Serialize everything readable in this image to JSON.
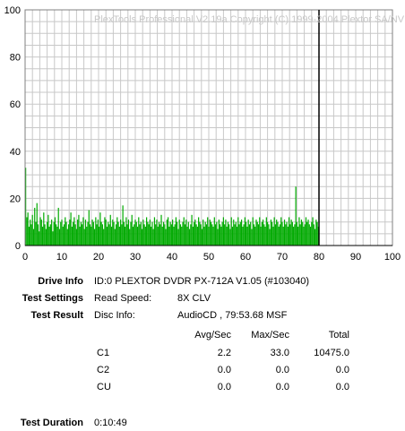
{
  "chart_data": {
    "type": "bar",
    "title": "PlexTools Professional V2.19a Copyright (C) 1999-2004 Plextor SA/NV",
    "xlim": [
      0,
      100
    ],
    "ylim": [
      0,
      100
    ],
    "xticks": [
      "0",
      "10",
      "20",
      "30",
      "40",
      "50",
      "60",
      "70",
      "80",
      "90",
      "100"
    ],
    "yticks": [
      "0",
      "20",
      "40",
      "60",
      "80",
      "100"
    ],
    "grid": true,
    "marker_x": 80,
    "series_color": "#00aa00",
    "series": [
      {
        "values": [
          33,
          12,
          14,
          8,
          11,
          9,
          13,
          7,
          16,
          10,
          18,
          9,
          6,
          12,
          11,
          8,
          14,
          9,
          7,
          10,
          13,
          8,
          9,
          11,
          6,
          10,
          12,
          9,
          8,
          16,
          7,
          10,
          11,
          8,
          9,
          12,
          10,
          7,
          9,
          11,
          14,
          8,
          10,
          12,
          9,
          7,
          11,
          13,
          8,
          10,
          9,
          12,
          7,
          11,
          8,
          10,
          15,
          9,
          8,
          11,
          10,
          7,
          12,
          9,
          11,
          8,
          14,
          10,
          9,
          7,
          12,
          11,
          8,
          10,
          9,
          13,
          8,
          11,
          10,
          7,
          9,
          12,
          10,
          8,
          11,
          9,
          17,
          10,
          8,
          12,
          9,
          11,
          7,
          10,
          13,
          8,
          9,
          11,
          10,
          8,
          12,
          9,
          10,
          7,
          11,
          9,
          8,
          12,
          10,
          9,
          11,
          8,
          10,
          7,
          12,
          9,
          11,
          8,
          10,
          9,
          13,
          8,
          10,
          9,
          7,
          11,
          12,
          8,
          10,
          9,
          11,
          8,
          9,
          12,
          10,
          7,
          11,
          9,
          8,
          10,
          12,
          9,
          11,
          8,
          10,
          7,
          9,
          13,
          8,
          10,
          11,
          9,
          8,
          12,
          10,
          9,
          7,
          11,
          8,
          10,
          9,
          12,
          8,
          11,
          10,
          9,
          8,
          12,
          9,
          10,
          7,
          11,
          9,
          8,
          10,
          12,
          9,
          11,
          8,
          10,
          9,
          7,
          12,
          8,
          11,
          9,
          10,
          8,
          12,
          9,
          10,
          11,
          8,
          9,
          12,
          10,
          8,
          11,
          9,
          10,
          7,
          12,
          9,
          8,
          11,
          10,
          9,
          12,
          8,
          10,
          11,
          9,
          8,
          12,
          10,
          9,
          7,
          11,
          10,
          8,
          12,
          9,
          11,
          10,
          8,
          9,
          12,
          10,
          8,
          11,
          9,
          10,
          8,
          12,
          9,
          11,
          10,
          8,
          9,
          25,
          10,
          8,
          12,
          9,
          11,
          10,
          8,
          9,
          12,
          10,
          11,
          9,
          8,
          10,
          12,
          9,
          7,
          11,
          10,
          8
        ]
      }
    ]
  },
  "info": {
    "drive_info_label": "Drive Info",
    "drive_info_value": "ID:0 PLEXTOR DVDR PX-712A V1.05 (#103040)",
    "test_settings_label": "Test Settings",
    "read_speed_label": "Read Speed:",
    "read_speed_value": "8X CLV",
    "test_result_label": "Test Result",
    "disc_info_label": "Disc Info:",
    "disc_info_value": "AudioCD , 79:53.68 MSF",
    "test_duration_label": "Test Duration",
    "test_duration_value": "0:10:49"
  },
  "results": {
    "headers": [
      "Avg/Sec",
      "Max/Sec",
      "Total"
    ],
    "rows": [
      {
        "name": "C1",
        "avg": "2.2",
        "max": "33.0",
        "total": "10475.0"
      },
      {
        "name": "C2",
        "avg": "0.0",
        "max": "0.0",
        "total": "0.0"
      },
      {
        "name": "CU",
        "avg": "0.0",
        "max": "0.0",
        "total": "0.0"
      }
    ]
  }
}
